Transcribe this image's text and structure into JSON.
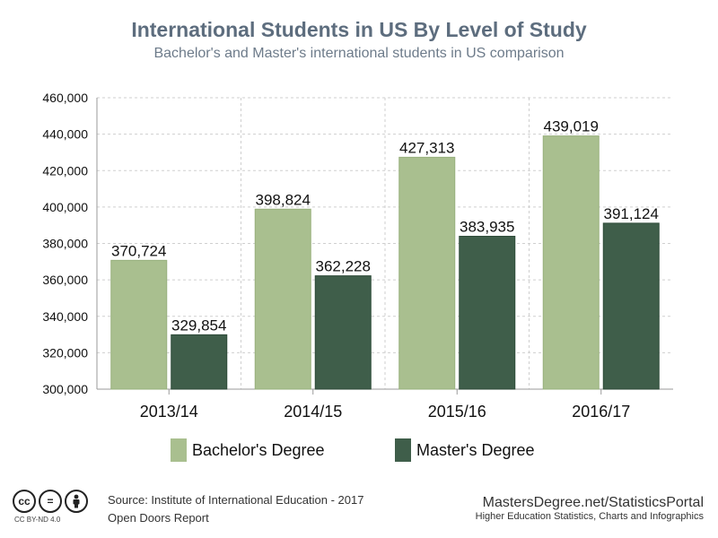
{
  "title": "International Students in US By Level of Study",
  "subtitle": "Bachelor's and Master's international students in US comparison",
  "chart_data": {
    "type": "bar",
    "categories": [
      "2013/14",
      "2014/15",
      "2015/16",
      "2016/17"
    ],
    "series": [
      {
        "name": "Bachelor's Degree",
        "color": "#a9bf8f",
        "values": [
          370724,
          398824,
          427313,
          439019
        ],
        "labels": [
          "370,724",
          "398,824",
          "427,313",
          "439,019"
        ]
      },
      {
        "name": "Master's Degree",
        "color": "#3f5e4a",
        "values": [
          329854,
          362228,
          383935,
          391124
        ],
        "labels": [
          "329,854",
          "362,228",
          "383,935",
          "391,124"
        ]
      }
    ],
    "ylim": [
      300000,
      460000
    ],
    "yticks": [
      "300,000",
      "320,000",
      "340,000",
      "360,000",
      "380,000",
      "400,000",
      "420,000",
      "440,000",
      "460,000"
    ],
    "grid": true,
    "legend_position": "bottom"
  },
  "source": {
    "line1": "Source: Institute of International Education - 2017",
    "line2": "Open Doors Report"
  },
  "license": {
    "label": "CC BY-ND 4.0"
  },
  "brand": {
    "name": "MastersDegree.net/StatisticsPortal",
    "tagline": "Higher Education Statistics, Charts and Infographics"
  }
}
